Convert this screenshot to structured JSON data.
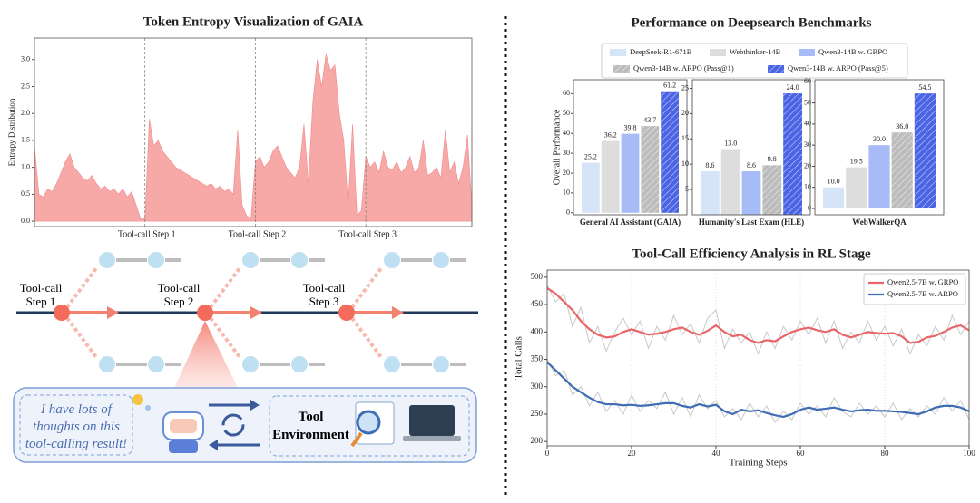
{
  "chart_data": [
    {
      "type": "area",
      "title": "Token Entropy Visualization of GAIA",
      "ylabel": "Entropy Distribution",
      "values": [
        1.4,
        0.5,
        0.45,
        0.6,
        0.55,
        0.7,
        0.9,
        1.1,
        1.25,
        1.0,
        0.9,
        0.8,
        0.75,
        0.85,
        0.7,
        0.6,
        0.65,
        0.55,
        0.6,
        0.5,
        0.6,
        0.45,
        0.55,
        0.3,
        0.05,
        0.05,
        1.9,
        1.4,
        1.5,
        1.3,
        1.2,
        1.1,
        1.0,
        0.95,
        0.9,
        0.85,
        0.8,
        0.75,
        0.7,
        0.65,
        0.7,
        0.6,
        0.65,
        0.55,
        0.6,
        0.5,
        1.7,
        0.3,
        0.1,
        0.05,
        1.1,
        1.2,
        1.0,
        1.1,
        1.3,
        1.4,
        1.2,
        1.0,
        0.9,
        0.8,
        1.0,
        1.8,
        0.7,
        2.2,
        3.0,
        2.5,
        3.1,
        2.8,
        2.9,
        2.0,
        1.5,
        0.3,
        1.8,
        0.1,
        0.2,
        1.2,
        1.0,
        1.1,
        0.9,
        1.3,
        1.0,
        0.95,
        1.1,
        0.9,
        1.0,
        1.2,
        0.9,
        1.0,
        1.5,
        0.85,
        0.9,
        1.0,
        0.8,
        1.7,
        0.9,
        1.1,
        0.7,
        1.0,
        1.6,
        0.3
      ],
      "color": "#f7a9a8",
      "xlim": [
        0,
        99
      ],
      "ylim": [
        -0.1,
        3.4
      ],
      "yticks": [
        {
          "value": 0,
          "label": "0.0"
        },
        0.5,
        {
          "value": 1,
          "label": "1.0"
        },
        1.5,
        {
          "value": 2,
          "label": "2.0"
        },
        2.5,
        {
          "value": 3,
          "label": "3.0"
        }
      ],
      "annotations": [
        {
          "x": 25,
          "label": "Tool-call Step 1"
        },
        {
          "x": 50,
          "label": "Tool-call Step 2"
        },
        {
          "x": 75,
          "label": "Tool-call Step 3"
        }
      ]
    },
    {
      "type": "bar",
      "title": "Performance on Deepsearch Benchmarks",
      "ylabel": "Overall Performance",
      "categories": [
        "General AI Assistant (GAIA)",
        "Humanity's Last Exam (HLE)",
        "WebWalkerQA"
      ],
      "panels": [
        {
          "ylim": [
            -1,
            67
          ],
          "yticks": [
            0,
            10,
            20,
            30,
            40,
            50,
            60
          ]
        },
        {
          "ylim": [
            0,
            26.7
          ],
          "yticks": [
            5,
            10,
            15,
            20,
            25
          ]
        },
        {
          "ylim": [
            -3,
            61
          ],
          "yticks": [
            0,
            10,
            20,
            30,
            40,
            50,
            60
          ]
        }
      ],
      "legend": "upper center",
      "series": [
        {
          "name": "DeepSeek-R1-671B",
          "color": "#d6e4f8",
          "hatch": false,
          "values": [
            25.2,
            8.6,
            10.0
          ],
          "value_labels": [
            "25.2",
            "8.6",
            "10.0"
          ]
        },
        {
          "name": "Webthinker-14B",
          "color": "#dddddd",
          "hatch": false,
          "values": [
            36.2,
            13.0,
            19.5
          ],
          "value_labels": [
            "36.2",
            "13.0",
            "19.5"
          ]
        },
        {
          "name": "Qwen3-14B w. GRPO",
          "color": "#a7bcf7",
          "hatch": false,
          "values": [
            39.8,
            8.6,
            30.0
          ],
          "value_labels": [
            "39.8",
            "8.6",
            "30.0"
          ]
        },
        {
          "name": "Qwen3-14B w. ARPO (Pass@1)",
          "color": "#bcbcbc",
          "hatch": true,
          "values": [
            43.7,
            9.8,
            36.0
          ],
          "value_labels": [
            "43.7",
            "9.8",
            "36.0"
          ]
        },
        {
          "name": "Qwen3-14B w. ARPO (Pass@5)",
          "color": "#4a64e4",
          "hatch": true,
          "values": [
            61.2,
            24.0,
            54.5
          ],
          "value_labels": [
            "61.2",
            "24.0",
            "54.5"
          ]
        }
      ]
    },
    {
      "type": "line",
      "title": "Tool-Call Efficiency Analysis in RL Stage",
      "xlabel": "Training Steps",
      "ylabel": "Total Calls",
      "x": [
        0,
        2,
        4,
        6,
        8,
        10,
        12,
        14,
        16,
        18,
        20,
        22,
        24,
        26,
        28,
        30,
        32,
        34,
        36,
        38,
        40,
        42,
        44,
        46,
        48,
        50,
        52,
        54,
        56,
        58,
        60,
        62,
        64,
        66,
        68,
        70,
        72,
        74,
        76,
        78,
        80,
        82,
        84,
        86,
        88,
        90,
        92,
        94,
        96,
        98,
        100
      ],
      "xlim": [
        0,
        100
      ],
      "ylim": [
        192,
        513
      ],
      "xticks": [
        0,
        20,
        40,
        60,
        80,
        100
      ],
      "yticks": [
        200,
        250,
        300,
        350,
        400,
        450,
        500
      ],
      "grid": true,
      "legend": "upper right",
      "series": [
        {
          "color": "#c8c8c8",
          "values": [
            485,
            455,
            470,
            410,
            445,
            380,
            410,
            365,
            400,
            425,
            395,
            420,
            370,
            410,
            385,
            430,
            395,
            415,
            380,
            425,
            440,
            370,
            405,
            380,
            400,
            360,
            400,
            370,
            410,
            385,
            420,
            395,
            425,
            380,
            420,
            370,
            400,
            380,
            420,
            385,
            410,
            375,
            405,
            360,
            395,
            375,
            410,
            385,
            430,
            395,
            420
          ]
        },
        {
          "color": "#c8c8c8",
          "values": [
            350,
            320,
            330,
            285,
            300,
            265,
            290,
            255,
            275,
            250,
            285,
            255,
            275,
            260,
            290,
            250,
            280,
            245,
            285,
            260,
            275,
            245,
            260,
            240,
            270,
            245,
            265,
            235,
            255,
            240,
            270,
            250,
            265,
            245,
            280,
            255,
            245,
            270,
            250,
            265,
            245,
            270,
            240,
            260,
            245,
            265,
            250,
            280,
            255,
            275,
            240
          ]
        },
        {
          "name": "Qwen2.5-7B w. GRPO",
          "color": "#e8666a",
          "values": [
            480,
            470,
            455,
            440,
            420,
            405,
            395,
            390,
            392,
            400,
            405,
            400,
            395,
            397,
            400,
            405,
            408,
            400,
            395,
            402,
            412,
            400,
            392,
            395,
            385,
            380,
            385,
            383,
            392,
            400,
            405,
            408,
            403,
            400,
            405,
            395,
            390,
            395,
            400,
            398,
            397,
            398,
            392,
            380,
            382,
            390,
            393,
            400,
            408,
            412,
            403
          ]
        },
        {
          "name": "Qwen2.5-7B w. ARPO",
          "color": "#3f6db3",
          "values": [
            345,
            330,
            315,
            300,
            290,
            280,
            272,
            268,
            268,
            266,
            267,
            265,
            266,
            268,
            270,
            270,
            265,
            262,
            268,
            264,
            267,
            255,
            250,
            258,
            255,
            257,
            252,
            248,
            245,
            250,
            258,
            262,
            258,
            260,
            262,
            258,
            255,
            257,
            258,
            256,
            256,
            255,
            254,
            252,
            250,
            255,
            262,
            265,
            265,
            262,
            255
          ]
        }
      ]
    }
  ],
  "diagram": {
    "steps": [
      "Tool-call Step 1",
      "Tool-call Step 2",
      "Tool-call Step 3"
    ],
    "thought": "I have lots of thoughts on this tool-calling result!",
    "environment": "Tool Environment"
  }
}
